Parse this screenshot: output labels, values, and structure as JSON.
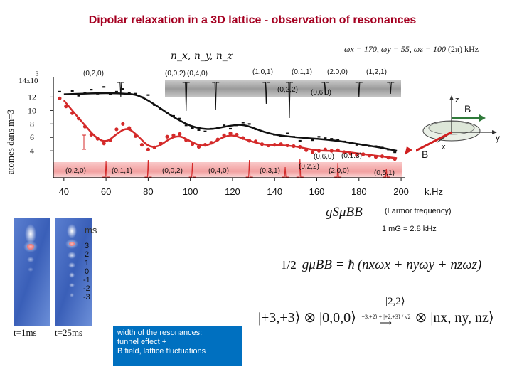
{
  "title": "Dipolar relaxation in a 3D lattice - observation of resonances",
  "quantum_numbers_label": "n_x, n_y, n_z",
  "frequencies": {
    "text_main": "ωx = 170, ωy = 55, ωz = 100",
    "unit": "(2π) kHz"
  },
  "resonance_labels_upper": [
    "(0,2,0)",
    "(0,0,2)",
    "(0,4,0)",
    "(1,0,1)",
    "(0,1,1)",
    "(2.0,0)",
    "(1,2,1)",
    "(0,2,2)",
    "(0,6,0)"
  ],
  "resonance_labels_lower": [
    "(0,2,0)",
    "(0,1,1)",
    "(0,0,2)",
    "(0,4,0)",
    "(0,3,1)",
    "(0,2,2)",
    "(2,0,0)",
    "(0,5,1)",
    "(0,6,0)",
    "(0.1.3)"
  ],
  "chart_data": {
    "type": "scatter",
    "xlabel": "kHz",
    "ylabel": "atomes dans m=3",
    "y_multiplier": "14x10",
    "y_exponent": "3",
    "xlim": [
      35,
      202
    ],
    "ylim": [
      0,
      15
    ],
    "x_ticks": [
      "40",
      "60",
      "80",
      "100",
      "120",
      "140",
      "160",
      "180",
      "200"
    ],
    "y_ticks": [
      "4",
      "6",
      "8",
      "10",
      "12"
    ],
    "series": [
      {
        "name": "black data",
        "color": "#111111",
        "x": [
          38,
          41,
          44,
          47,
          50,
          53,
          56,
          59,
          62,
          65,
          68,
          71,
          74,
          77,
          80,
          83,
          86,
          89,
          92,
          95,
          98,
          101,
          104,
          107,
          110,
          113,
          116,
          119,
          122,
          125,
          128,
          131,
          134,
          137,
          140,
          143,
          146,
          149,
          152,
          155,
          158,
          161,
          164,
          167,
          170,
          173,
          176,
          179,
          182,
          185,
          188,
          191,
          194,
          197
        ],
        "y": [
          12.8,
          12.4,
          12.9,
          12.2,
          12.6,
          13.1,
          12.5,
          13.5,
          12.4,
          12.8,
          13.2,
          12.6,
          12.5,
          12.0,
          12.3,
          10.8,
          10.2,
          9.6,
          9.2,
          8.8,
          7.8,
          7.4,
          7.1,
          6.9,
          7.3,
          7.5,
          7.8,
          7.3,
          7.8,
          8.2,
          8.0,
          7.2,
          6.9,
          6.6,
          6.4,
          6.2,
          6.6,
          6.1,
          5.5,
          5.9,
          5.6,
          6.1,
          5.9,
          5.8,
          5.7,
          5.4,
          5.2,
          4.9,
          4.9,
          4.7,
          4.7,
          4.5,
          4.2,
          3.8
        ]
      },
      {
        "name": "red data",
        "color": "#d42a2a",
        "x": [
          38,
          41,
          44,
          47,
          50,
          53,
          56,
          59,
          62,
          65,
          68,
          71,
          74,
          77,
          80,
          83,
          86,
          89,
          92,
          95,
          98,
          101,
          104,
          107,
          110,
          113,
          116,
          119,
          122,
          125,
          128,
          131,
          134,
          137,
          140,
          143,
          146,
          149,
          152,
          155,
          158,
          161,
          164,
          167,
          170,
          173,
          176,
          179,
          182,
          185,
          188,
          191,
          194,
          197
        ],
        "y": [
          11.8,
          10.6,
          9.6,
          8.8,
          7.6,
          6.4,
          5.8,
          5.1,
          5.6,
          7.2,
          8.0,
          7.4,
          6.2,
          4.9,
          4.2,
          4.5,
          5.1,
          6.1,
          6.3,
          6.5,
          5.6,
          5.0,
          4.6,
          4.9,
          5.2,
          5.7,
          6.3,
          6.6,
          6.4,
          5.9,
          5.5,
          5.4,
          5.0,
          4.8,
          4.9,
          5.0,
          4.8,
          4.7,
          4.6,
          4.1,
          3.8,
          4.0,
          4.2,
          4.0,
          4.1,
          3.8,
          3.6,
          3.4,
          3.5,
          3.3,
          3.1,
          3.2,
          3.0,
          2.8
        ]
      },
      {
        "name": "black fit",
        "color": "#111111",
        "x": [
          40,
          50,
          60,
          70,
          75,
          80,
          85,
          90,
          95,
          100,
          105,
          110,
          115,
          120,
          125,
          130,
          135,
          140,
          150,
          160,
          170,
          180,
          190,
          198
        ],
        "y": [
          12.4,
          12.5,
          12.6,
          12.5,
          12.3,
          11.5,
          10.5,
          9.4,
          8.5,
          7.7,
          7.3,
          7.2,
          7.5,
          7.8,
          7.9,
          7.4,
          6.8,
          6.4,
          6.0,
          5.8,
          5.5,
          5.0,
          4.5,
          4.0
        ]
      },
      {
        "name": "red fit",
        "color": "#d42a2a",
        "x": [
          40,
          45,
          50,
          55,
          60,
          65,
          70,
          75,
          80,
          85,
          90,
          95,
          100,
          105,
          110,
          115,
          120,
          125,
          130,
          135,
          140,
          150,
          160,
          170,
          180,
          190,
          198
        ],
        "y": [
          11.5,
          9.6,
          7.8,
          6.0,
          5.2,
          6.5,
          7.5,
          6.3,
          4.6,
          4.6,
          5.8,
          6.3,
          5.4,
          4.7,
          5.0,
          6.0,
          6.4,
          5.8,
          5.3,
          4.9,
          4.9,
          4.7,
          4.0,
          4.0,
          3.6,
          3.2,
          2.9
        ]
      }
    ],
    "upper_dips_x": [
      67,
      98,
      112,
      136,
      147,
      164,
      180,
      195
    ],
    "lower_peaks_x": [
      60,
      80,
      101,
      128,
      145,
      152,
      170,
      193
    ]
  },
  "diagram": {
    "axis_z": "z",
    "axis_x": "x",
    "axis_y": "y",
    "field_label_top": "B",
    "field_label_bottom": "B"
  },
  "khz_label": "k.Hz",
  "larmor_symbol": "gSμBB",
  "larmor_label": "(Larmor frequency)",
  "conversion": "1 mG = 2.8 kHz",
  "ms_label": "ms",
  "ms_values": [
    "3",
    "2",
    "1",
    "0",
    "-1",
    "-2",
    "-3"
  ],
  "time_labels": [
    "t=1ms",
    "t=25ms"
  ],
  "note_lines": [
    "width of the resonances:",
    "tunnel effect +",
    "B field, lattice fluctuations"
  ],
  "equation": {
    "fraction": "1/2",
    "lhs": "gμBB = ħ",
    "rhs": "(nxωx + nyωy + nzωz)"
  },
  "ket_22": "|2,2⟩",
  "state_eq": {
    "initial": "|+3,+3⟩ ⊗ |0,0,0⟩",
    "arrow_text": "|+3,+2⟩ + |+2,+3⟩ / √2",
    "final": "⊗ |nx, ny, nz⟩"
  },
  "colors": {
    "title": "#a50021",
    "red_series": "#d42a2a",
    "lattice_blue": "#4a6fc0",
    "note_box": "#0070c0"
  }
}
